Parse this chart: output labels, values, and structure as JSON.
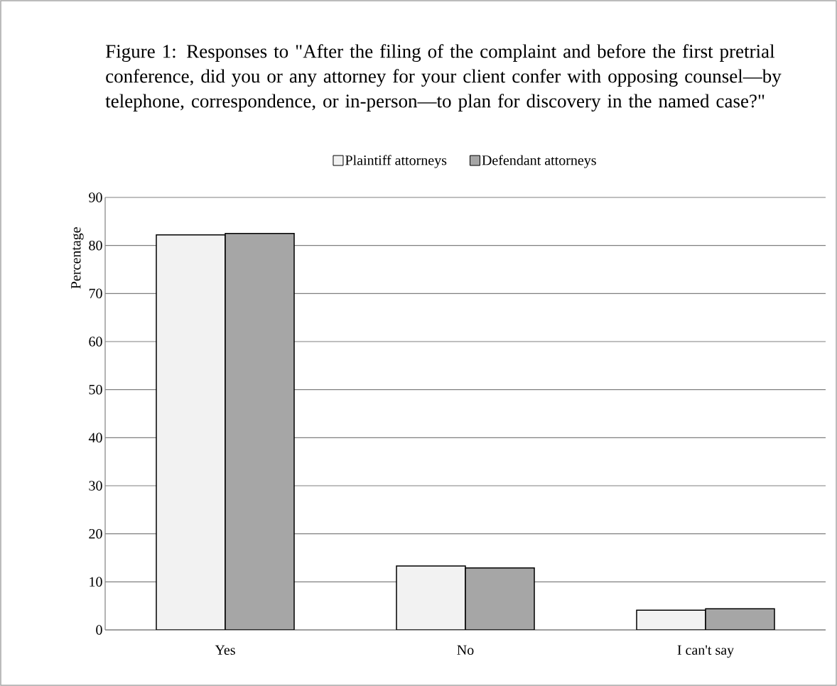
{
  "chart_data": {
    "type": "bar",
    "title": "Figure 1: Responses to \"After the filing of the complaint and before the first pretrial conference, did you or any attorney for your client confer with opposing counsel—by telephone, correspondence, or in-person—to plan for discovery in the named case?\"",
    "ylabel": "Percentage",
    "categories": [
      "Yes",
      "No",
      "I can't say"
    ],
    "series": [
      {
        "name": "Plaintiff attorneys",
        "color": "#f2f2f2",
        "values": [
          82.2,
          13.3,
          4.1
        ]
      },
      {
        "name": "Defendant attorneys",
        "color": "#a6a6a6",
        "values": [
          82.5,
          12.9,
          4.4
        ]
      }
    ],
    "ylim": [
      0,
      90
    ],
    "yticks": [
      0,
      10,
      20,
      30,
      40,
      50,
      60,
      70,
      80,
      90
    ],
    "grid": "y",
    "legend": "top"
  }
}
